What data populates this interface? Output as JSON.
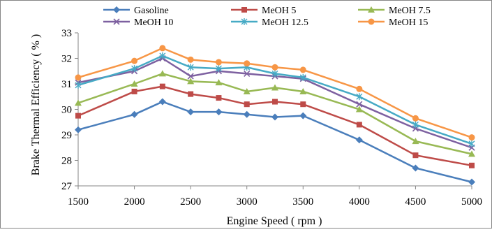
{
  "chart_data": {
    "type": "line",
    "title": "",
    "xlabel": "Engine Speed ( rpm )",
    "ylabel": "Brake Thermal Efficiency ( % )",
    "x": [
      1500,
      2000,
      2250,
      2500,
      2750,
      3000,
      3250,
      3500,
      4000,
      4500,
      5000
    ],
    "xticks": [
      1500,
      2000,
      2500,
      3000,
      3500,
      4000,
      4500,
      5000
    ],
    "xlim": [
      1500,
      5000
    ],
    "ylim": [
      27,
      33
    ],
    "yticks": [
      27,
      28,
      29,
      30,
      31,
      32,
      33
    ],
    "grid": false,
    "legend": "top",
    "series": [
      {
        "name": "Gasoline",
        "color": "#4a7ebb",
        "marker": "diamond",
        "values": [
          29.2,
          29.8,
          30.3,
          29.9,
          29.9,
          29.8,
          29.7,
          29.75,
          28.8,
          27.7,
          27.15
        ]
      },
      {
        "name": "MeOH 5",
        "color": "#be4b48",
        "marker": "square",
        "values": [
          29.75,
          30.7,
          30.9,
          30.6,
          30.45,
          30.2,
          30.3,
          30.2,
          29.4,
          28.2,
          27.8
        ]
      },
      {
        "name": "MeOH 7.5",
        "color": "#98b954",
        "marker": "triangle",
        "values": [
          30.25,
          31.0,
          31.4,
          31.1,
          31.05,
          30.7,
          30.85,
          30.7,
          30.0,
          28.75,
          28.25
        ]
      },
      {
        "name": "MeOH 10",
        "color": "#7d60a0",
        "marker": "x",
        "values": [
          31.05,
          31.5,
          32.0,
          31.3,
          31.5,
          31.4,
          31.3,
          31.2,
          30.2,
          29.25,
          28.5
        ]
      },
      {
        "name": "MeOH 12.5",
        "color": "#46aac5",
        "marker": "star",
        "values": [
          30.95,
          31.6,
          32.1,
          31.65,
          31.6,
          31.65,
          31.4,
          31.25,
          30.5,
          29.4,
          28.65
        ]
      },
      {
        "name": "MeOH 15",
        "color": "#f79646",
        "marker": "circle",
        "values": [
          31.25,
          31.9,
          32.4,
          31.95,
          31.85,
          31.8,
          31.65,
          31.55,
          30.8,
          29.65,
          28.9
        ]
      }
    ]
  }
}
